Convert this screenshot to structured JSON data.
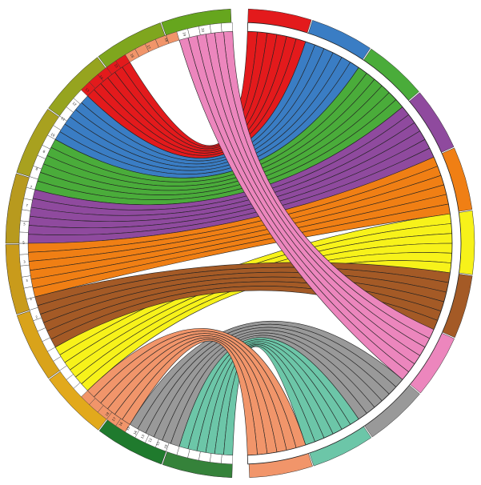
{
  "figure": {
    "colors": {
      "red": "#e31a1c",
      "blue": "#3a7dc4",
      "green": "#4aac3a",
      "purple": "#8f4a9e",
      "orange": "#f07f14",
      "yellow": "#f7f21a",
      "brown": "#a45a26",
      "pink": "#ec86bd",
      "gray": "#999999",
      "teal": "#6cc6a8",
      "salmon": "#f1956a"
    },
    "ring_colors": [
      "#66a61e",
      "#7fa61e",
      "#96a41f",
      "#a8a11f",
      "#b89a1e",
      "#c99b1b",
      "#d9a31a",
      "#e2a91c",
      "#1f7a2d",
      "#35823a"
    ],
    "right_sectors": [
      "red",
      "blue",
      "green",
      "purple",
      "orange",
      "yellow",
      "brown",
      "pink",
      "gray",
      "teal",
      "salmon"
    ],
    "left_groups": [
      "teal",
      "gray",
      "salmon",
      "yellow",
      "brown",
      "orange",
      "purple",
      "green",
      "blue",
      "red",
      "salmon",
      "pink"
    ],
    "left_tick_labels": [
      "2",
      "2",
      "3",
      "3",
      "5",
      "5",
      "7",
      "7",
      "8",
      "8",
      "10",
      "11",
      "12",
      "13",
      "14",
      "15",
      "16",
      "17",
      "18",
      "19",
      "20"
    ],
    "bottom_tick_labels": [
      "10",
      "11",
      "12",
      "13",
      "14",
      "15",
      "16",
      "17",
      "18"
    ]
  }
}
